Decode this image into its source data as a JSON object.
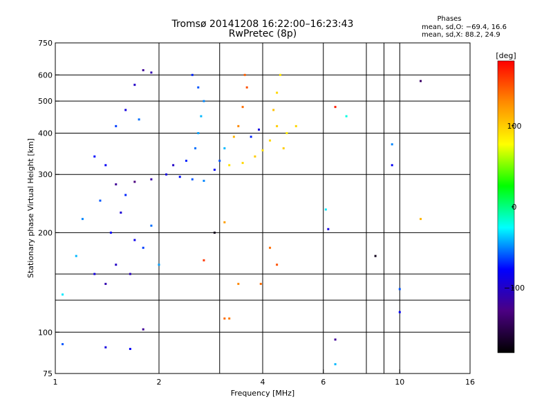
{
  "header": {
    "title_line1": "Tromsø 20141208 16:22:00–16:23:43",
    "title_line2": "RwPretec (8p)",
    "stats_heading": "Phases",
    "stats_o": "mean, sd,O: −69.4, 16.6",
    "stats_x": "mean, sd,X:  88.2, 24.9"
  },
  "colorbar": {
    "unit_label": "[deg]",
    "ticks": [
      {
        "value": 100,
        "label": "100"
      },
      {
        "value": 0,
        "label": "0"
      },
      {
        "value": -100,
        "label": "−100"
      }
    ],
    "range": [
      -180,
      180
    ],
    "colors": [
      "#000000",
      "#4b0082",
      "#0000ff",
      "#00ffff",
      "#00ff00",
      "#ffff00",
      "#ff8c00",
      "#ff0000"
    ]
  },
  "chart_data": {
    "type": "scatter",
    "title": "Tromsø 20141208 16:22:00–16:23:43",
    "subtitle": "RwPretec (8p)",
    "xlabel": "Frequency [MHz]",
    "ylabel": "Stationary phase Virtual Height [km]",
    "x_scale": "log",
    "y_scale": "log",
    "xlim": [
      1,
      16
    ],
    "ylim": [
      75,
      750
    ],
    "grid": true,
    "x_ticks": [
      {
        "value": 1,
        "label": "1"
      },
      {
        "value": 2,
        "label": "2"
      },
      {
        "value": 4,
        "label": "4"
      },
      {
        "value": 6,
        "label": "6"
      },
      {
        "value": 10,
        "label": "10"
      },
      {
        "value": 16,
        "label": "16"
      }
    ],
    "x_extra_gridlines": [
      3,
      8,
      9
    ],
    "y_ticks": [
      {
        "value": 75,
        "label": "75"
      },
      {
        "value": 100,
        "label": "100"
      },
      {
        "value": 200,
        "label": "200"
      },
      {
        "value": 300,
        "label": "300"
      },
      {
        "value": 400,
        "label": "400"
      },
      {
        "value": 500,
        "label": "500"
      },
      {
        "value": 600,
        "label": "600"
      },
      {
        "value": 750,
        "label": "750"
      }
    ],
    "y_extra_gridlines": [
      125,
      150
    ],
    "colorbar_label": "[deg]",
    "series": [
      {
        "color_meaning": "phase (deg)",
        "points": [
          {
            "x": 1.3,
            "y": 150,
            "phase": -90
          },
          {
            "x": 1.4,
            "y": 140,
            "phase": -110
          },
          {
            "x": 1.5,
            "y": 160,
            "phase": -100
          },
          {
            "x": 1.45,
            "y": 200,
            "phase": -80
          },
          {
            "x": 1.55,
            "y": 230,
            "phase": -95
          },
          {
            "x": 1.6,
            "y": 260,
            "phase": -70
          },
          {
            "x": 1.35,
            "y": 250,
            "phase": -60
          },
          {
            "x": 1.2,
            "y": 220,
            "phase": -50
          },
          {
            "x": 1.15,
            "y": 170,
            "phase": -40
          },
          {
            "x": 1.05,
            "y": 130,
            "phase": -30
          },
          {
            "x": 1.7,
            "y": 190,
            "phase": -85
          },
          {
            "x": 1.8,
            "y": 180,
            "phase": -65
          },
          {
            "x": 1.9,
            "y": 210,
            "phase": -55
          },
          {
            "x": 2.0,
            "y": 160,
            "phase": -45
          },
          {
            "x": 1.65,
            "y": 150,
            "phase": -105
          },
          {
            "x": 1.5,
            "y": 280,
            "phase": -120
          },
          {
            "x": 1.7,
            "y": 285,
            "phase": -130
          },
          {
            "x": 1.9,
            "y": 290,
            "phase": -115
          },
          {
            "x": 2.1,
            "y": 300,
            "phase": -90
          },
          {
            "x": 2.3,
            "y": 295,
            "phase": -75
          },
          {
            "x": 2.5,
            "y": 290,
            "phase": -60
          },
          {
            "x": 2.7,
            "y": 287,
            "phase": -50
          },
          {
            "x": 2.2,
            "y": 320,
            "phase": -100
          },
          {
            "x": 2.4,
            "y": 330,
            "phase": -70
          },
          {
            "x": 2.55,
            "y": 360,
            "phase": -55
          },
          {
            "x": 2.6,
            "y": 400,
            "phase": -45
          },
          {
            "x": 2.65,
            "y": 450,
            "phase": -40
          },
          {
            "x": 2.7,
            "y": 500,
            "phase": -50
          },
          {
            "x": 2.6,
            "y": 550,
            "phase": -60
          },
          {
            "x": 2.5,
            "y": 600,
            "phase": -70
          },
          {
            "x": 1.4,
            "y": 320,
            "phase": -80
          },
          {
            "x": 1.3,
            "y": 340,
            "phase": -75
          },
          {
            "x": 1.5,
            "y": 420,
            "phase": -65
          },
          {
            "x": 1.6,
            "y": 470,
            "phase": -90
          },
          {
            "x": 1.75,
            "y": 440,
            "phase": -55
          },
          {
            "x": 1.8,
            "y": 620,
            "phase": -120
          },
          {
            "x": 1.7,
            "y": 560,
            "phase": -100
          },
          {
            "x": 1.9,
            "y": 610,
            "phase": -110
          },
          {
            "x": 2.9,
            "y": 310,
            "phase": -80
          },
          {
            "x": 3.0,
            "y": 330,
            "phase": -60
          },
          {
            "x": 3.1,
            "y": 360,
            "phase": -40
          },
          {
            "x": 3.3,
            "y": 390,
            "phase": 110
          },
          {
            "x": 3.4,
            "y": 420,
            "phase": 130
          },
          {
            "x": 3.5,
            "y": 480,
            "phase": 140
          },
          {
            "x": 3.6,
            "y": 550,
            "phase": 150
          },
          {
            "x": 3.55,
            "y": 600,
            "phase": 145
          },
          {
            "x": 3.2,
            "y": 320,
            "phase": 90
          },
          {
            "x": 3.5,
            "y": 325,
            "phase": 95
          },
          {
            "x": 3.8,
            "y": 340,
            "phase": 100
          },
          {
            "x": 4.0,
            "y": 355,
            "phase": 90
          },
          {
            "x": 4.2,
            "y": 380,
            "phase": 95
          },
          {
            "x": 4.4,
            "y": 420,
            "phase": 100
          },
          {
            "x": 4.3,
            "y": 470,
            "phase": 105
          },
          {
            "x": 4.4,
            "y": 530,
            "phase": 95
          },
          {
            "x": 4.5,
            "y": 600,
            "phase": 90
          },
          {
            "x": 4.7,
            "y": 400,
            "phase": 85
          },
          {
            "x": 5.0,
            "y": 420,
            "phase": 95
          },
          {
            "x": 4.6,
            "y": 360,
            "phase": 100
          },
          {
            "x": 3.9,
            "y": 410,
            "phase": -90
          },
          {
            "x": 3.7,
            "y": 390,
            "phase": -70
          },
          {
            "x": 3.1,
            "y": 110,
            "phase": 140
          },
          {
            "x": 3.2,
            "y": 110,
            "phase": 135
          },
          {
            "x": 3.4,
            "y": 140,
            "phase": 130
          },
          {
            "x": 3.95,
            "y": 140,
            "phase": 140
          },
          {
            "x": 4.4,
            "y": 160,
            "phase": 150
          },
          {
            "x": 4.2,
            "y": 180,
            "phase": 140
          },
          {
            "x": 2.7,
            "y": 165,
            "phase": 160
          },
          {
            "x": 1.8,
            "y": 102,
            "phase": -120
          },
          {
            "x": 1.05,
            "y": 92,
            "phase": -60
          },
          {
            "x": 1.4,
            "y": 90,
            "phase": -90
          },
          {
            "x": 1.65,
            "y": 89,
            "phase": -80
          },
          {
            "x": 6.5,
            "y": 95,
            "phase": -120
          },
          {
            "x": 6.5,
            "y": 80,
            "phase": -40
          },
          {
            "x": 10.0,
            "y": 115,
            "phase": -80
          },
          {
            "x": 8.5,
            "y": 170,
            "phase": -170
          },
          {
            "x": 10.0,
            "y": 135,
            "phase": -60
          },
          {
            "x": 11.5,
            "y": 220,
            "phase": 110
          },
          {
            "x": 11.5,
            "y": 575,
            "phase": -140
          },
          {
            "x": 6.5,
            "y": 480,
            "phase": 170
          },
          {
            "x": 7.0,
            "y": 450,
            "phase": -20
          },
          {
            "x": 9.5,
            "y": 320,
            "phase": -80
          },
          {
            "x": 9.5,
            "y": 370,
            "phase": -50
          },
          {
            "x": 6.2,
            "y": 205,
            "phase": -90
          },
          {
            "x": 6.1,
            "y": 235,
            "phase": -30
          },
          {
            "x": 3.1,
            "y": 215,
            "phase": 120
          },
          {
            "x": 2.9,
            "y": 200,
            "phase": -170
          }
        ]
      }
    ]
  }
}
